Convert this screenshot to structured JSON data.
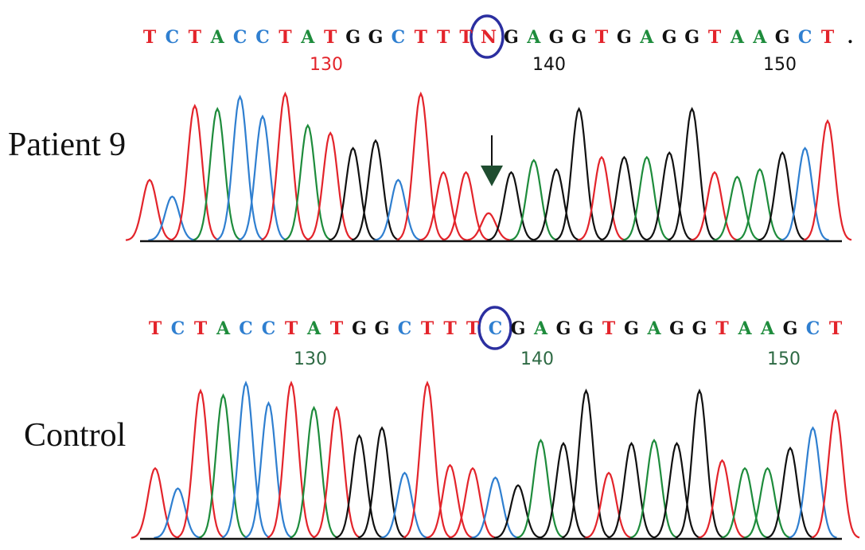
{
  "base_colors": {
    "T": "#e3242b",
    "C": "#2f7fd0",
    "A": "#1e8c3c",
    "G": "#111111",
    "N": "#e3242b",
    ".": "#111111"
  },
  "panels": [
    {
      "label": "Patient 9",
      "sequence": [
        "T",
        "C",
        "T",
        "A",
        "C",
        "C",
        "T",
        "A",
        "T",
        "G",
        "G",
        "C",
        "T",
        "T",
        "T",
        "N",
        "G",
        "A",
        "G",
        "G",
        "T",
        "G",
        "A",
        "G",
        "G",
        "T",
        "A",
        "A",
        "G",
        "C",
        "T",
        "."
      ],
      "positions": [
        130,
        140,
        150
      ],
      "position_colors": [
        "#e3242b",
        "#111111",
        "#111111"
      ],
      "peak_heights": [
        40,
        29,
        89,
        87,
        95,
        82,
        97,
        76,
        71,
        61,
        66,
        40,
        97,
        45,
        45,
        18,
        45,
        53,
        47,
        87,
        55,
        55,
        55,
        58,
        87,
        45,
        42,
        47,
        58,
        61,
        79
      ]
    },
    {
      "label": "Control",
      "sequence": [
        "T",
        "C",
        "T",
        "A",
        "C",
        "C",
        "T",
        "A",
        "T",
        "G",
        "G",
        "C",
        "T",
        "T",
        "T",
        "C",
        "G",
        "A",
        "G",
        "G",
        "T",
        "G",
        "A",
        "G",
        "G",
        "T",
        "A",
        "A",
        "G",
        "C",
        "T"
      ],
      "positions": [
        130,
        140,
        150
      ],
      "position_colors": [
        "#2e6a44",
        "#2e6a44",
        "#2e6a44"
      ],
      "peak_heights": [
        45,
        32,
        95,
        92,
        100,
        87,
        100,
        84,
        84,
        66,
        71,
        42,
        100,
        47,
        45,
        39,
        34,
        63,
        61,
        95,
        42,
        61,
        63,
        61,
        95,
        50,
        45,
        45,
        58,
        71,
        82
      ]
    }
  ]
}
